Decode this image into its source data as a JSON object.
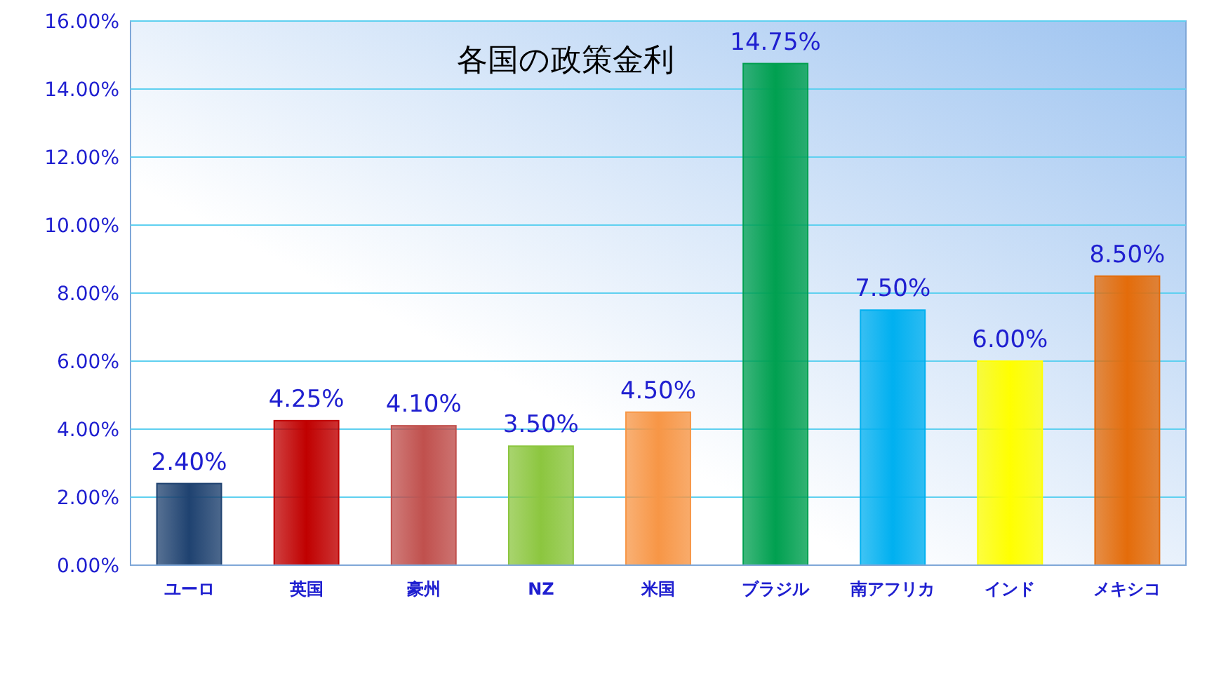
{
  "chart_data": {
    "type": "bar",
    "title": "各国の政策金利",
    "categories": [
      "ユーロ",
      "英国",
      "豪州",
      "NZ",
      "米国",
      "ブラジル",
      "南アフリカ",
      "インド",
      "メキシコ"
    ],
    "values": [
      2.4,
      4.25,
      4.1,
      3.5,
      4.5,
      14.75,
      7.5,
      6.0,
      8.5
    ],
    "value_labels": [
      "2.40%",
      "4.25%",
      "4.10%",
      "3.50%",
      "4.50%",
      "14.75%",
      "7.50%",
      "6.00%",
      "8.50%"
    ],
    "colors": [
      "#1f4270",
      "#c00000",
      "#c0504d",
      "#8cc63f",
      "#f79646",
      "#00a050",
      "#00b0f0",
      "#ffff00",
      "#e46c0a"
    ],
    "ylim": [
      0,
      16
    ],
    "yticks": [
      {
        "value": 0,
        "label": "0.00%"
      },
      {
        "value": 2,
        "label": "2.00%"
      },
      {
        "value": 4,
        "label": "4.00%"
      },
      {
        "value": 6,
        "label": "6.00%"
      },
      {
        "value": 8,
        "label": "8.00%"
      },
      {
        "value": 10,
        "label": "10.00%"
      },
      {
        "value": 12,
        "label": "12.00%"
      },
      {
        "value": 14,
        "label": "14.00%"
      },
      {
        "value": 16,
        "label": "16.00%"
      }
    ],
    "grid": "y"
  }
}
